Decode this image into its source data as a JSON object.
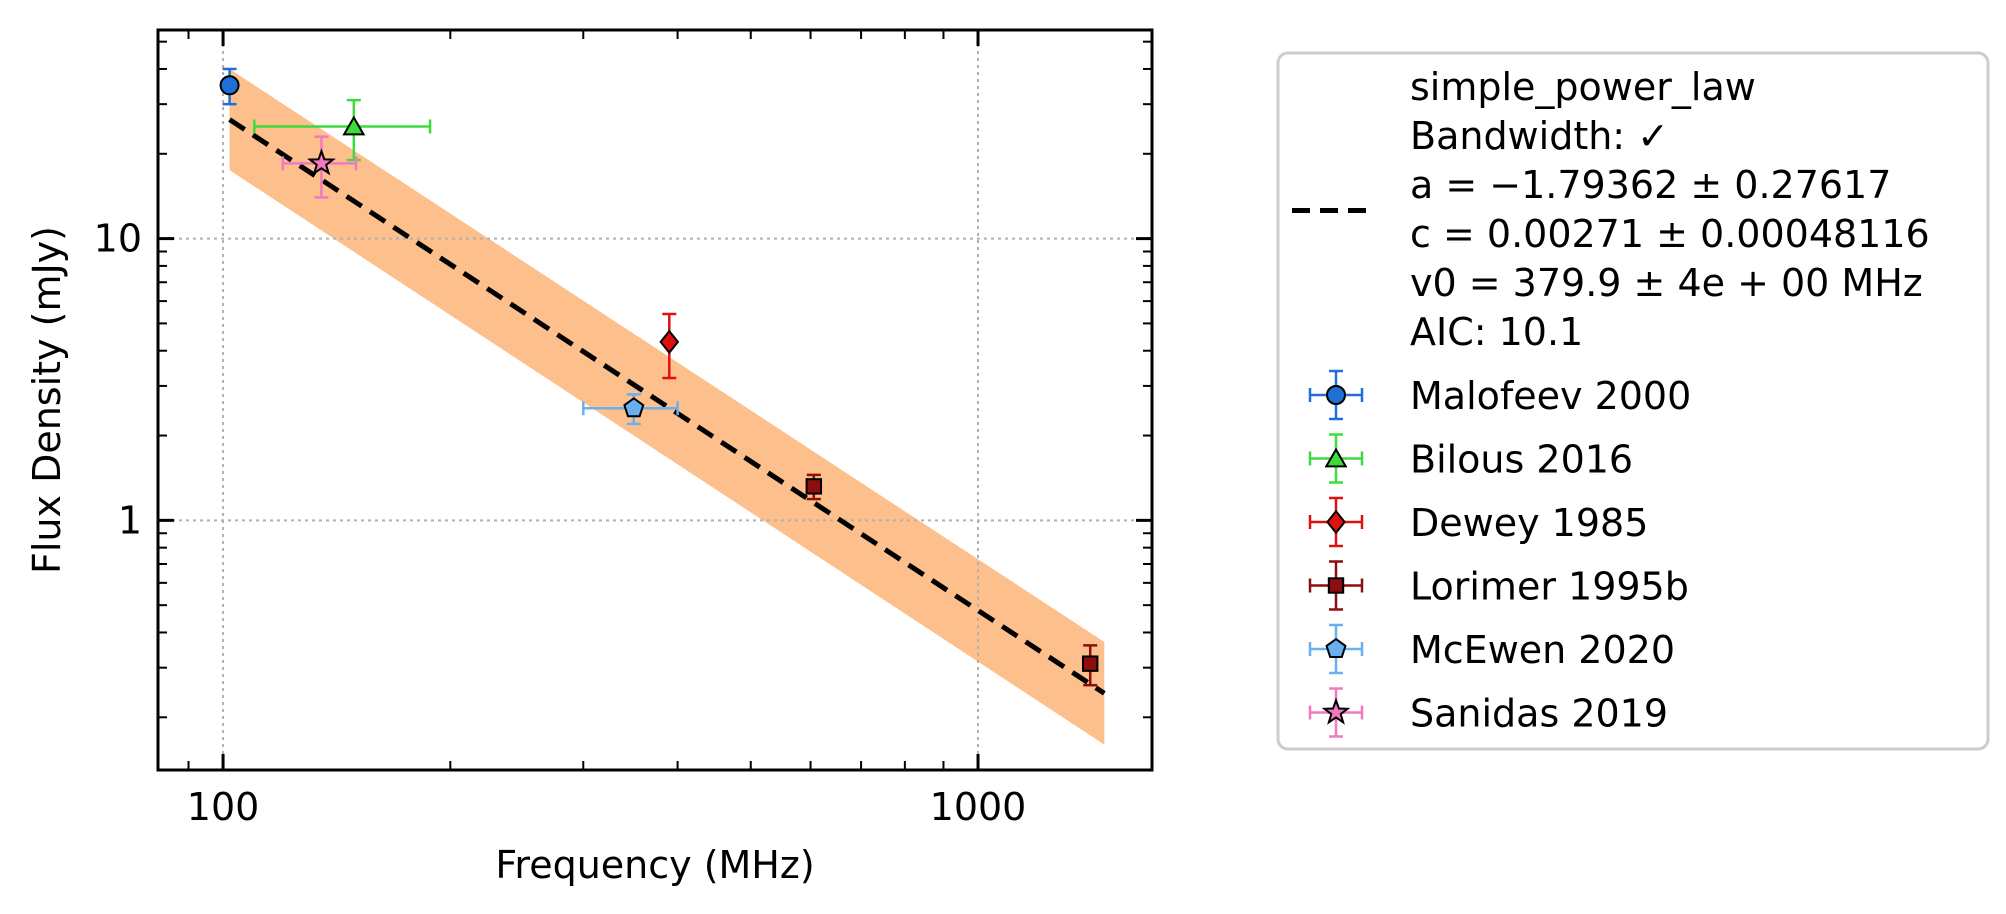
{
  "chart_data": {
    "type": "scatter",
    "title": "",
    "xlabel": "Frequency (MHz)",
    "ylabel": "Flux Density (mJy)",
    "x_scale": "log",
    "y_scale": "log",
    "xlim": [
      82,
      1700
    ],
    "ylim": [
      0.13,
      55
    ],
    "x_ticks": [
      {
        "value": 100,
        "label": "100"
      },
      {
        "value": 1000,
        "label": "1000"
      }
    ],
    "y_ticks": [
      {
        "value": 1,
        "label": "1"
      },
      {
        "value": 10,
        "label": "10"
      }
    ],
    "grid": true,
    "legend_position": "outside-right",
    "fit": {
      "name": "simple_power_law",
      "legend_lines": [
        "simple_power_law",
        "Bandwidth: ✓",
        "a = −1.79362 ± 0.27617",
        "c = 0.00271 ± 0.00048116",
        "v0 = 379.9 ± 4e + 00 MHz",
        "AIC: 10.1"
      ],
      "a": -1.79362,
      "a_err": 0.27617,
      "c": 0.00271,
      "c_err": 0.00048116,
      "v0": 379.9,
      "x_range": [
        102,
        1470
      ],
      "band_upper_at_start": 40,
      "band_lower_at_start": 17.5,
      "band_upper_at_end": 0.37,
      "band_lower_at_end": 0.16,
      "line_color": "#000000",
      "band_color": "#fdbf8c"
    },
    "series": [
      {
        "name": "Malofeev 2000",
        "marker": "circle",
        "color": "#1f6fd6",
        "ecolor": "#1f6fd6",
        "points": [
          {
            "x": 102,
            "y": 35,
            "xerr": [
              0,
              0
            ],
            "yerr": [
              5,
              5
            ]
          }
        ]
      },
      {
        "name": "Bilous 2016",
        "marker": "triangle",
        "color": "#3ddc3d",
        "ecolor": "#3ddc3d",
        "points": [
          {
            "x": 149,
            "y": 25,
            "xerr": [
              39,
              39
            ],
            "yerr": [
              6,
              6
            ]
          }
        ]
      },
      {
        "name": "Dewey 1985",
        "marker": "diamond",
        "color": "#e01010",
        "ecolor": "#e01010",
        "points": [
          {
            "x": 390,
            "y": 4.3,
            "xerr": [
              0,
              0
            ],
            "yerr": [
              1.1,
              1.1
            ]
          }
        ]
      },
      {
        "name": "Lorimer 1995b",
        "marker": "square",
        "color": "#8b0f0f",
        "ecolor": "#8b0f0f",
        "points": [
          {
            "x": 606,
            "y": 1.32,
            "xerr": [
              0,
              0
            ],
            "yerr": [
              0.13,
              0.13
            ]
          },
          {
            "x": 1408,
            "y": 0.31,
            "xerr": [
              0,
              0
            ],
            "yerr": [
              0.05,
              0.05
            ]
          }
        ]
      },
      {
        "name": "McEwen 2020",
        "marker": "pentagon",
        "color": "#6ab0f0",
        "ecolor": "#6ab0f0",
        "points": [
          {
            "x": 350,
            "y": 2.5,
            "xerr": [
              50,
              50
            ],
            "yerr": [
              0.3,
              0.3
            ]
          }
        ]
      },
      {
        "name": "Sanidas 2019",
        "marker": "star",
        "color": "#f07ac0",
        "ecolor": "#f07ac0",
        "points": [
          {
            "x": 135,
            "y": 18.5,
            "xerr": [
              15,
              15
            ],
            "yerr": [
              4.5,
              4.5
            ]
          }
        ]
      }
    ]
  }
}
